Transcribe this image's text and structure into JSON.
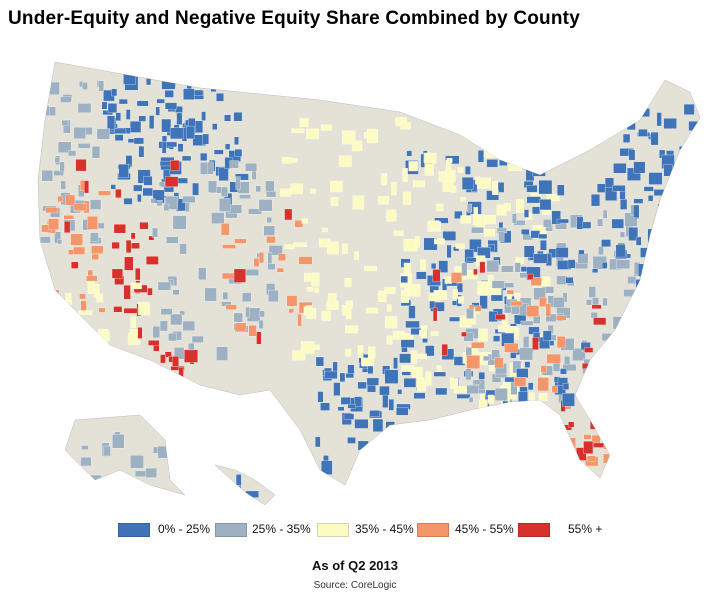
{
  "title": "Under-Equity and Negative Equity Share Combined by County",
  "legend": [
    {
      "label": "0% - 25%",
      "color": "#3f74b8"
    },
    {
      "label": "25% - 35%",
      "color": "#9db1c2"
    },
    {
      "label": "35% - 45%",
      "color": "#fdfbc4"
    },
    {
      "label": "45% - 55%",
      "color": "#f4956a"
    },
    {
      "label": "55% +",
      "color": "#d7312c"
    }
  ],
  "base_color": "#e4e2d6",
  "as_of": "As of Q2 2013",
  "source": "Source: CoreLogic"
}
